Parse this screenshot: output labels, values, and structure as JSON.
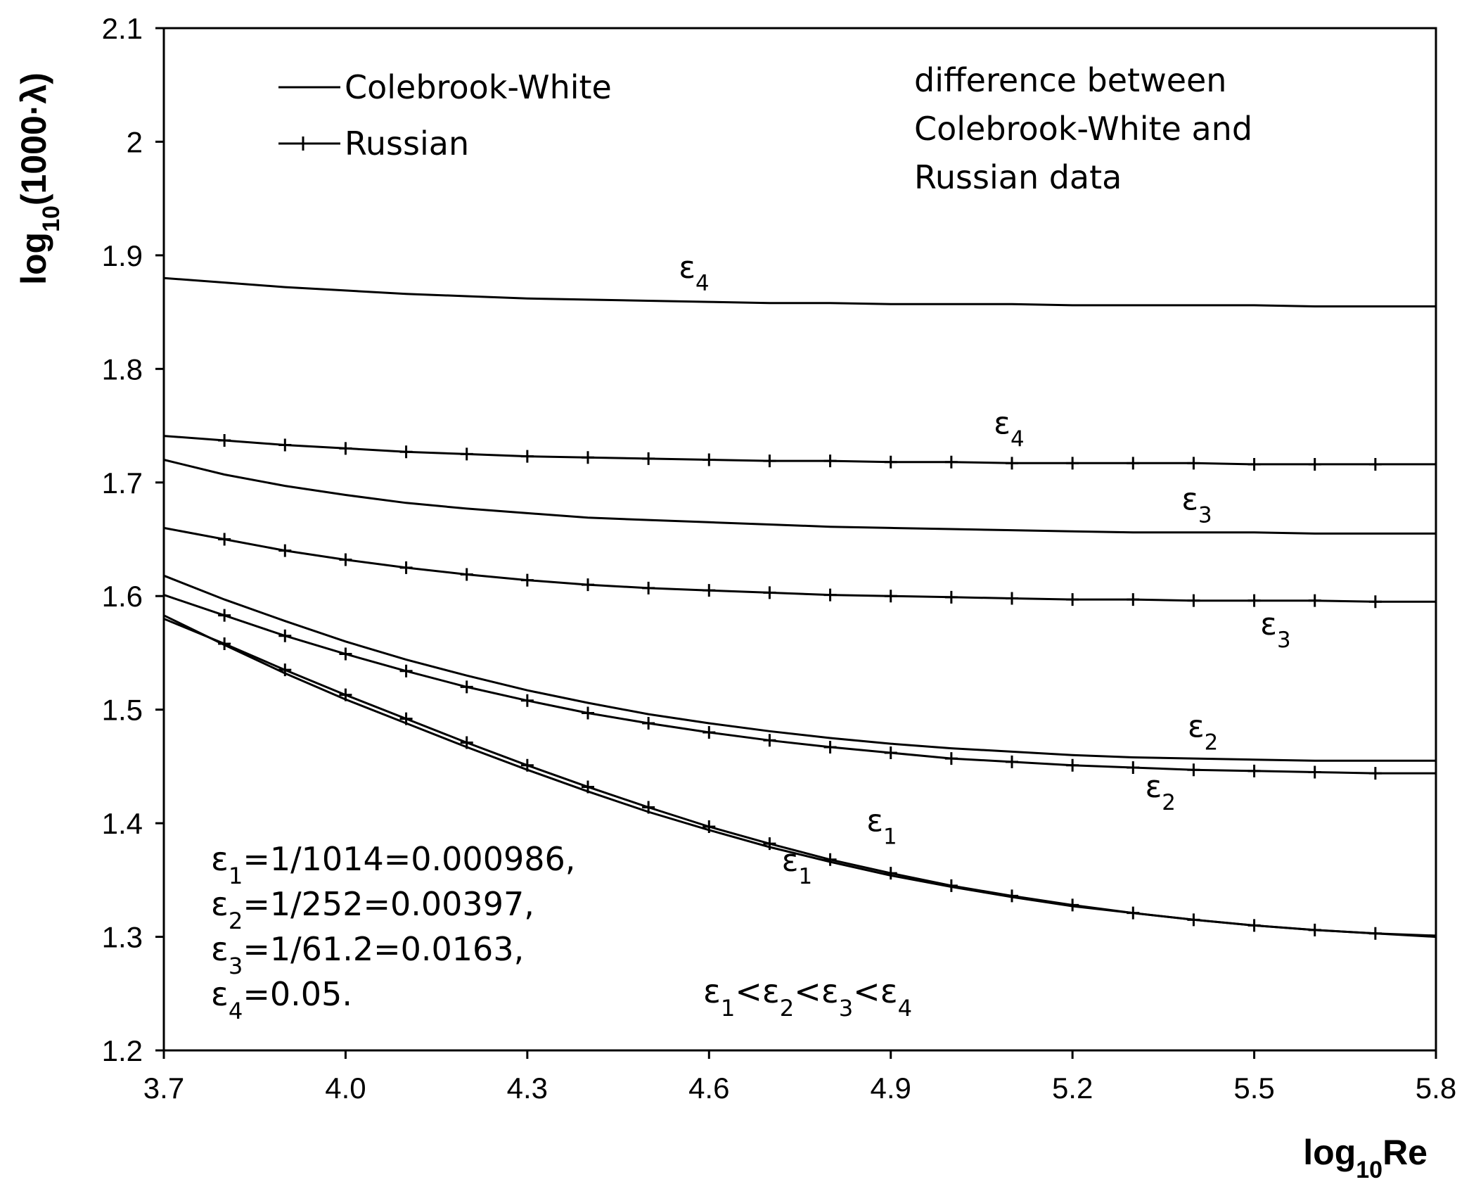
{
  "chart_data": {
    "type": "line",
    "title": "",
    "xlabel": "log10Re",
    "ylabel": "log10(1000·λ)",
    "xlim": [
      3.7,
      5.8
    ],
    "ylim": [
      1.2,
      2.1
    ],
    "x_ticks": [
      3.7,
      4.0,
      4.3,
      4.6,
      4.9,
      5.2,
      5.5,
      5.8
    ],
    "x_tick_labels": [
      "3.7",
      "4.0",
      "4.3",
      "4.6",
      "4.9",
      "5.2",
      "5.5",
      "5.8"
    ],
    "y_ticks": [
      1.2,
      1.3,
      1.4,
      1.5,
      1.6,
      1.7,
      1.8,
      1.9,
      2.0,
      2.1
    ],
    "y_tick_labels": [
      "1.2",
      "1.3",
      "1.4",
      "1.5",
      "1.6",
      "1.7",
      "1.8",
      "1.9",
      "2",
      "2.1"
    ],
    "grid": false,
    "legend": {
      "placement": "top-left",
      "entries": [
        {
          "name": "Colebrook-White",
          "style": "line"
        },
        {
          "name": "Russian",
          "style": "line-plus"
        }
      ]
    },
    "x": [
      3.7,
      3.8,
      3.9,
      4.0,
      4.1,
      4.2,
      4.3,
      4.4,
      4.5,
      4.6,
      4.7,
      4.8,
      4.9,
      5.0,
      5.1,
      5.2,
      5.3,
      5.4,
      5.5,
      5.6,
      5.7,
      5.8
    ],
    "series": [
      {
        "name": "Colebrook-White ε4",
        "family": "Colebrook-White",
        "label": "ε",
        "sub": "4",
        "values": [
          1.88,
          1.876,
          1.872,
          1.869,
          1.866,
          1.864,
          1.862,
          1.861,
          1.86,
          1.859,
          1.858,
          1.858,
          1.857,
          1.857,
          1.857,
          1.856,
          1.856,
          1.856,
          1.856,
          1.855,
          1.855,
          1.855
        ]
      },
      {
        "name": "Russian ε4",
        "family": "Russian",
        "label": "ε",
        "sub": "4",
        "values": [
          1.741,
          1.737,
          1.733,
          1.73,
          1.727,
          1.725,
          1.723,
          1.722,
          1.721,
          1.72,
          1.719,
          1.719,
          1.718,
          1.718,
          1.717,
          1.717,
          1.717,
          1.717,
          1.716,
          1.716,
          1.716,
          1.716
        ]
      },
      {
        "name": "Colebrook-White ε3",
        "family": "Colebrook-White",
        "label": "ε",
        "sub": "3",
        "values": [
          1.72,
          1.707,
          1.697,
          1.689,
          1.682,
          1.677,
          1.673,
          1.669,
          1.667,
          1.665,
          1.663,
          1.661,
          1.66,
          1.659,
          1.658,
          1.657,
          1.656,
          1.656,
          1.656,
          1.655,
          1.655,
          1.655
        ]
      },
      {
        "name": "Russian ε3",
        "family": "Russian",
        "label": "ε",
        "sub": "3",
        "values": [
          1.66,
          1.65,
          1.64,
          1.632,
          1.625,
          1.619,
          1.614,
          1.61,
          1.607,
          1.605,
          1.603,
          1.601,
          1.6,
          1.599,
          1.598,
          1.597,
          1.597,
          1.596,
          1.596,
          1.596,
          1.595,
          1.595
        ]
      },
      {
        "name": "Colebrook-White ε2",
        "family": "Colebrook-White",
        "label": "ε",
        "sub": "2",
        "values": [
          1.618,
          1.597,
          1.578,
          1.56,
          1.544,
          1.53,
          1.517,
          1.506,
          1.496,
          1.488,
          1.481,
          1.475,
          1.47,
          1.466,
          1.463,
          1.46,
          1.458,
          1.457,
          1.456,
          1.455,
          1.455,
          1.455
        ]
      },
      {
        "name": "Russian ε2",
        "family": "Russian",
        "label": "ε",
        "sub": "2",
        "values": [
          1.601,
          1.583,
          1.565,
          1.549,
          1.534,
          1.52,
          1.508,
          1.497,
          1.488,
          1.48,
          1.473,
          1.467,
          1.462,
          1.457,
          1.454,
          1.451,
          1.449,
          1.447,
          1.446,
          1.445,
          1.444,
          1.444
        ]
      },
      {
        "name": "Colebrook-White ε1",
        "family": "Colebrook-White",
        "label": "ε",
        "sub": "1",
        "values": [
          1.583,
          1.557,
          1.532,
          1.509,
          1.488,
          1.467,
          1.447,
          1.428,
          1.41,
          1.394,
          1.379,
          1.366,
          1.354,
          1.344,
          1.335,
          1.327,
          1.321,
          1.315,
          1.31,
          1.306,
          1.303,
          1.301
        ]
      },
      {
        "name": "Russian ε1",
        "family": "Russian",
        "label": "ε",
        "sub": "1",
        "values": [
          1.58,
          1.558,
          1.535,
          1.513,
          1.492,
          1.471,
          1.451,
          1.432,
          1.414,
          1.397,
          1.382,
          1.368,
          1.356,
          1.345,
          1.336,
          1.328,
          1.321,
          1.315,
          1.31,
          1.306,
          1.303,
          1.3
        ]
      }
    ],
    "curve_labels": [
      {
        "series": "Colebrook-White ε4",
        "text": "ε",
        "sub": "4",
        "x": 4.55,
        "y": 1.88
      },
      {
        "series": "Russian ε4",
        "text": "ε",
        "sub": "4",
        "x": 5.07,
        "y": 1.743
      },
      {
        "series": "Colebrook-White ε3",
        "text": "ε",
        "sub": "3",
        "x": 5.38,
        "y": 1.676
      },
      {
        "series": "Russian ε3",
        "text": "ε",
        "sub": "3",
        "x": 5.51,
        "y": 1.566
      },
      {
        "series": "Colebrook-White ε2",
        "text": "ε",
        "sub": "2",
        "x": 5.39,
        "y": 1.476
      },
      {
        "series": "Russian ε2",
        "text": "ε",
        "sub": "2",
        "x": 5.32,
        "y": 1.423
      },
      {
        "series": "Colebrook-White ε1",
        "text": "ε",
        "sub": "1",
        "x": 4.86,
        "y": 1.393
      },
      {
        "series": "Russian ε1",
        "text": "ε",
        "sub": "1",
        "x": 4.72,
        "y": 1.358
      }
    ],
    "annotations": {
      "note_lines": [
        "difference between",
        "Colebrook-White and",
        "Russian data"
      ],
      "definitions": [
        {
          "sym": "ε",
          "sub": "1",
          "rest": "=1/1014=0.000986,"
        },
        {
          "sym": "ε",
          "sub": "2",
          "rest": "=1/252=0.00397,"
        },
        {
          "sym": "ε",
          "sub": "3",
          "rest": "=1/61.2=0.0163,"
        },
        {
          "sym": "ε",
          "sub": "4",
          "rest": "=0.05."
        }
      ],
      "inequality": {
        "sym": "ε",
        "subs": [
          "1",
          "2",
          "3",
          "4"
        ],
        "sep": "<"
      }
    }
  }
}
